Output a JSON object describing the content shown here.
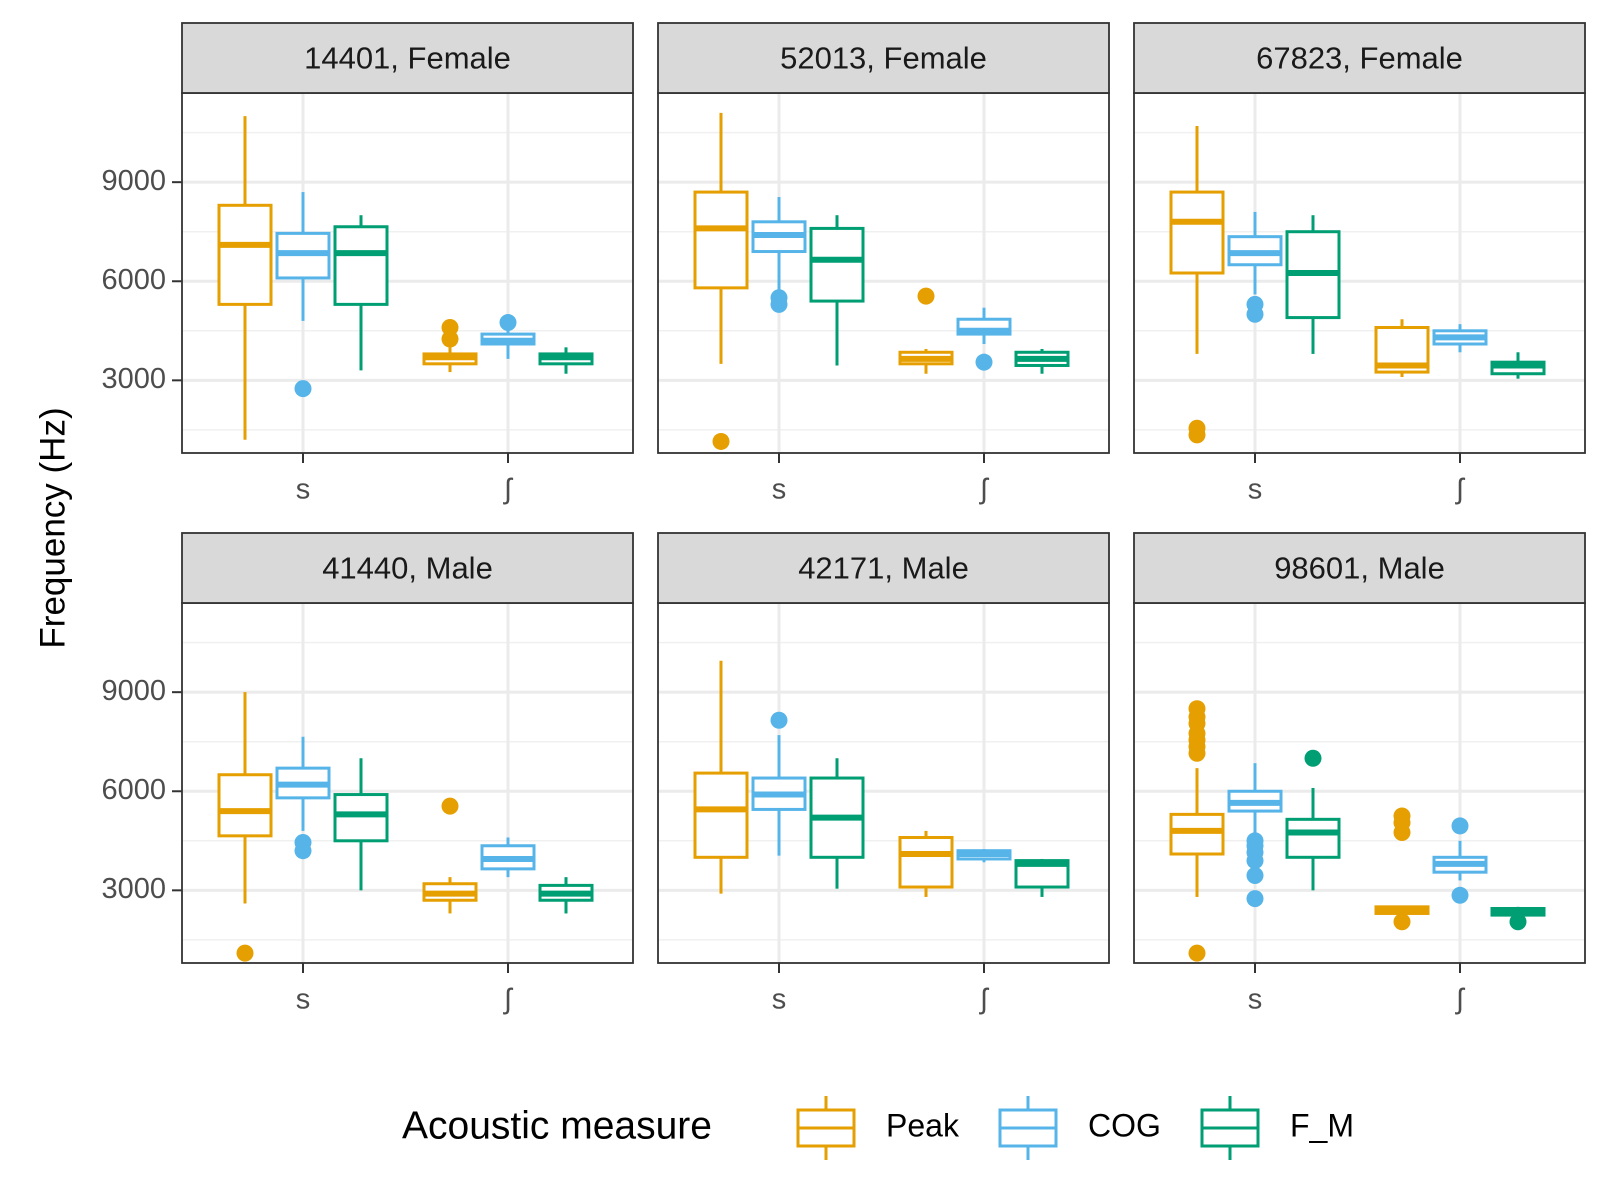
{
  "chart_data": {
    "type": "box",
    "ylabel": "Frequency (Hz)",
    "xlabel": "",
    "y_ticks": [
      3000,
      6000,
      9000
    ],
    "ylim": [
      800,
      11700
    ],
    "categories": [
      "s",
      "ʃ"
    ],
    "grid": true,
    "legend": {
      "title": "Acoustic measure",
      "position": "bottom",
      "items": [
        {
          "name": "Peak",
          "color": "#E69F00"
        },
        {
          "name": "COG",
          "color": "#56B4E9"
        },
        {
          "name": "F_M",
          "color": "#009E73"
        }
      ]
    },
    "panels": [
      {
        "label": "14401, Female",
        "boxes": [
          {
            "category": "s",
            "measure": "Peak",
            "lower_whisker": 1200,
            "q1": 5300,
            "median": 7100,
            "q3": 8300,
            "upper_whisker": 11000,
            "outliers": []
          },
          {
            "category": "s",
            "measure": "COG",
            "lower_whisker": 4800,
            "q1": 6100,
            "median": 6850,
            "q3": 7450,
            "upper_whisker": 8700,
            "outliers": [
              2750
            ]
          },
          {
            "category": "s",
            "measure": "F_M",
            "lower_whisker": 3300,
            "q1": 5300,
            "median": 6850,
            "q3": 7650,
            "upper_whisker": 8000,
            "outliers": []
          },
          {
            "category": "ʃ",
            "measure": "Peak",
            "lower_whisker": 3250,
            "q1": 3500,
            "median": 3700,
            "q3": 3800,
            "upper_whisker": 4000,
            "outliers": [
              4250,
              4600
            ]
          },
          {
            "category": "ʃ",
            "measure": "COG",
            "lower_whisker": 3650,
            "q1": 4100,
            "median": 4200,
            "q3": 4400,
            "upper_whisker": 4700,
            "outliers": [
              4750
            ]
          },
          {
            "category": "ʃ",
            "measure": "F_M",
            "lower_whisker": 3200,
            "q1": 3500,
            "median": 3700,
            "q3": 3800,
            "upper_whisker": 4000,
            "outliers": []
          }
        ]
      },
      {
        "label": "52013, Female",
        "boxes": [
          {
            "category": "s",
            "measure": "Peak",
            "lower_whisker": 3500,
            "q1": 5800,
            "median": 7600,
            "q3": 8700,
            "upper_whisker": 11100,
            "outliers": [
              1150
            ]
          },
          {
            "category": "s",
            "measure": "COG",
            "lower_whisker": 5600,
            "q1": 6900,
            "median": 7400,
            "q3": 7800,
            "upper_whisker": 8550,
            "outliers": [
              5300,
              5500
            ]
          },
          {
            "category": "s",
            "measure": "F_M",
            "lower_whisker": 3450,
            "q1": 5400,
            "median": 6650,
            "q3": 7600,
            "upper_whisker": 8000,
            "outliers": []
          },
          {
            "category": "ʃ",
            "measure": "Peak",
            "lower_whisker": 3200,
            "q1": 3500,
            "median": 3650,
            "q3": 3850,
            "upper_whisker": 3950,
            "outliers": [
              5550
            ]
          },
          {
            "category": "ʃ",
            "measure": "COG",
            "lower_whisker": 4100,
            "q1": 4400,
            "median": 4500,
            "q3": 4850,
            "upper_whisker": 5200,
            "outliers": [
              3550
            ]
          },
          {
            "category": "ʃ",
            "measure": "F_M",
            "lower_whisker": 3200,
            "q1": 3450,
            "median": 3650,
            "q3": 3850,
            "upper_whisker": 3950,
            "outliers": []
          }
        ]
      },
      {
        "label": "67823, Female",
        "boxes": [
          {
            "category": "s",
            "measure": "Peak",
            "lower_whisker": 3800,
            "q1": 6250,
            "median": 7800,
            "q3": 8700,
            "upper_whisker": 10700,
            "outliers": [
              1350,
              1550
            ]
          },
          {
            "category": "s",
            "measure": "COG",
            "lower_whisker": 5600,
            "q1": 6500,
            "median": 6850,
            "q3": 7350,
            "upper_whisker": 8100,
            "outliers": [
              5000,
              5300
            ]
          },
          {
            "category": "s",
            "measure": "F_M",
            "lower_whisker": 3800,
            "q1": 4900,
            "median": 6250,
            "q3": 7500,
            "upper_whisker": 8000,
            "outliers": []
          },
          {
            "category": "ʃ",
            "measure": "Peak",
            "lower_whisker": 3100,
            "q1": 3250,
            "median": 3450,
            "q3": 4600,
            "upper_whisker": 4850,
            "outliers": []
          },
          {
            "category": "ʃ",
            "measure": "COG",
            "lower_whisker": 3850,
            "q1": 4100,
            "median": 4300,
            "q3": 4500,
            "upper_whisker": 4700,
            "outliers": []
          },
          {
            "category": "ʃ",
            "measure": "F_M",
            "lower_whisker": 3050,
            "q1": 3200,
            "median": 3450,
            "q3": 3550,
            "upper_whisker": 3850,
            "outliers": []
          }
        ]
      },
      {
        "label": "41440, Male",
        "boxes": [
          {
            "category": "s",
            "measure": "Peak",
            "lower_whisker": 2600,
            "q1": 4650,
            "median": 5400,
            "q3": 6500,
            "upper_whisker": 9000,
            "outliers": [
              1100
            ]
          },
          {
            "category": "s",
            "measure": "COG",
            "lower_whisker": 4800,
            "q1": 5800,
            "median": 6200,
            "q3": 6700,
            "upper_whisker": 7650,
            "outliers": [
              4200,
              4450
            ]
          },
          {
            "category": "s",
            "measure": "F_M",
            "lower_whisker": 3000,
            "q1": 4500,
            "median": 5300,
            "q3": 5900,
            "upper_whisker": 7000,
            "outliers": []
          },
          {
            "category": "ʃ",
            "measure": "Peak",
            "lower_whisker": 2300,
            "q1": 2700,
            "median": 2900,
            "q3": 3200,
            "upper_whisker": 3400,
            "outliers": [
              5550
            ]
          },
          {
            "category": "ʃ",
            "measure": "COG",
            "lower_whisker": 3400,
            "q1": 3650,
            "median": 3950,
            "q3": 4350,
            "upper_whisker": 4600,
            "outliers": []
          },
          {
            "category": "ʃ",
            "measure": "F_M",
            "lower_whisker": 2300,
            "q1": 2700,
            "median": 2900,
            "q3": 3150,
            "upper_whisker": 3400,
            "outliers": []
          }
        ]
      },
      {
        "label": "42171, Male",
        "boxes": [
          {
            "category": "s",
            "measure": "Peak",
            "lower_whisker": 2900,
            "q1": 4000,
            "median": 5450,
            "q3": 6550,
            "upper_whisker": 9950,
            "outliers": []
          },
          {
            "category": "s",
            "measure": "COG",
            "lower_whisker": 4050,
            "q1": 5450,
            "median": 5900,
            "q3": 6400,
            "upper_whisker": 7700,
            "outliers": [
              8150
            ]
          },
          {
            "category": "s",
            "measure": "F_M",
            "lower_whisker": 3050,
            "q1": 4000,
            "median": 5200,
            "q3": 6400,
            "upper_whisker": 7000,
            "outliers": []
          },
          {
            "category": "ʃ",
            "measure": "Peak",
            "lower_whisker": 2800,
            "q1": 3100,
            "median": 4100,
            "q3": 4600,
            "upper_whisker": 4800,
            "outliers": []
          },
          {
            "category": "ʃ",
            "measure": "COG",
            "lower_whisker": 3850,
            "q1": 3950,
            "median": 4100,
            "q3": 4200,
            "upper_whisker": 4250,
            "outliers": []
          },
          {
            "category": "ʃ",
            "measure": "F_M",
            "lower_whisker": 2800,
            "q1": 3100,
            "median": 3800,
            "q3": 3900,
            "upper_whisker": 3950,
            "outliers": []
          }
        ]
      },
      {
        "label": "98601, Male",
        "boxes": [
          {
            "category": "s",
            "measure": "Peak",
            "lower_whisker": 2800,
            "q1": 4100,
            "median": 4800,
            "q3": 5300,
            "upper_whisker": 6700,
            "outliers": [
              1100,
              7150,
              7350,
              7550,
              7750,
              8050,
              8250,
              8500
            ]
          },
          {
            "category": "s",
            "measure": "COG",
            "lower_whisker": 4600,
            "q1": 5400,
            "median": 5650,
            "q3": 6000,
            "upper_whisker": 6850,
            "outliers": [
              2750,
              3450,
              3900,
              4150,
              4350,
              4500
            ]
          },
          {
            "category": "s",
            "measure": "F_M",
            "lower_whisker": 3000,
            "q1": 4000,
            "median": 4750,
            "q3": 5150,
            "upper_whisker": 6100,
            "outliers": [
              7000
            ]
          },
          {
            "category": "ʃ",
            "measure": "Peak",
            "lower_whisker": 2300,
            "q1": 2300,
            "median": 2400,
            "q3": 2500,
            "upper_whisker": 2500,
            "outliers": [
              2050,
              4750,
              5050,
              5250
            ]
          },
          {
            "category": "ʃ",
            "measure": "COG",
            "lower_whisker": 3300,
            "q1": 3550,
            "median": 3800,
            "q3": 4000,
            "upper_whisker": 4500,
            "outliers": [
              2850,
              4950
            ]
          },
          {
            "category": "ʃ",
            "measure": "F_M",
            "lower_whisker": 2200,
            "q1": 2250,
            "median": 2350,
            "q3": 2450,
            "upper_whisker": 2500,
            "outliers": [
              2050
            ]
          }
        ]
      }
    ]
  }
}
